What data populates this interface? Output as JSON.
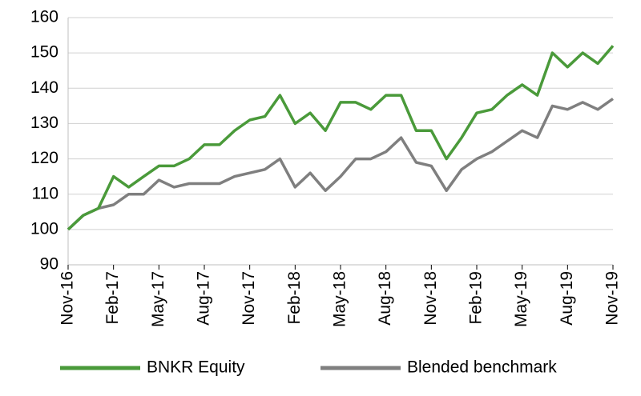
{
  "chart_data": {
    "type": "line",
    "categories": [
      "Nov-16",
      null,
      null,
      "Feb-17",
      null,
      null,
      "May-17",
      null,
      null,
      "Aug-17",
      null,
      null,
      "Nov-17",
      null,
      null,
      "Feb-18",
      null,
      null,
      "May-18",
      null,
      null,
      "Aug-18",
      null,
      null,
      "Nov-18",
      null,
      null,
      "Feb-19",
      null,
      null,
      "May-19",
      null,
      null,
      "Aug-19",
      null,
      null,
      "Nov-19"
    ],
    "series": [
      {
        "name": "BNKR Equity",
        "color": "#4a9a3a",
        "values": [
          100,
          104,
          106,
          115,
          112,
          115,
          118,
          118,
          120,
          124,
          124,
          128,
          131,
          132,
          138,
          130,
          133,
          128,
          136,
          136,
          134,
          138,
          138,
          128,
          128,
          120,
          126,
          133,
          134,
          138,
          141,
          138,
          150,
          146,
          150,
          147,
          152
        ]
      },
      {
        "name": "Blended benchmark",
        "color": "#7f7f7f",
        "values": [
          100,
          104,
          106,
          107,
          110,
          110,
          114,
          112,
          113,
          113,
          113,
          115,
          116,
          117,
          120,
          112,
          116,
          111,
          115,
          120,
          120,
          122,
          126,
          119,
          118,
          111,
          117,
          120,
          122,
          125,
          128,
          126,
          135,
          134,
          136,
          134,
          137
        ]
      }
    ],
    "ylim": [
      90,
      160
    ],
    "yticks": [
      90,
      100,
      110,
      120,
      130,
      140,
      150,
      160
    ],
    "grid": true,
    "legend": "bottom"
  }
}
